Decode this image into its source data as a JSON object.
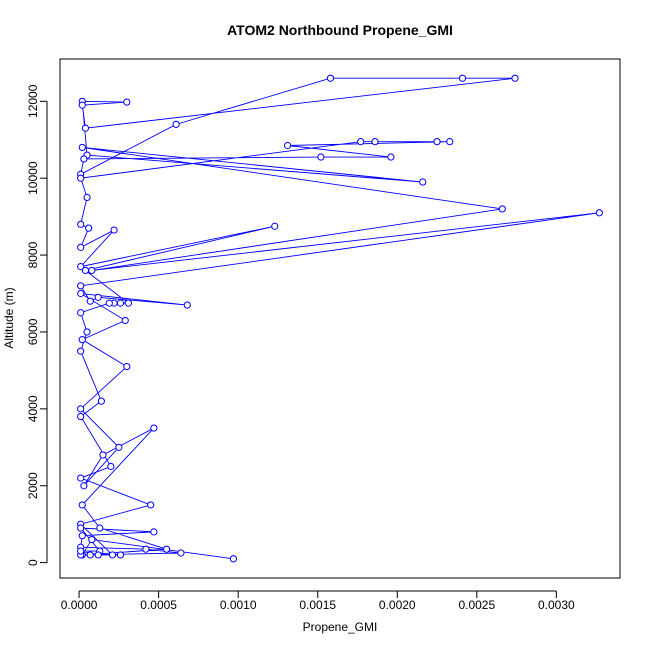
{
  "chart_data": {
    "type": "line",
    "title": "ATOM2 Northbound Propene_GMI",
    "xlabel": "Propene_GMI",
    "ylabel": "Altitude (m)",
    "xlim": [
      -0.00012,
      0.0034
    ],
    "ylim": [
      -400,
      13100
    ],
    "x_ticks": [
      0,
      0.0005,
      0.001,
      0.0015,
      0.002,
      0.0025,
      0.003
    ],
    "x_tick_labels": [
      "0.0000",
      "0.0005",
      "0.0010",
      "0.0015",
      "0.0020",
      "0.0025",
      "0.0030"
    ],
    "y_ticks": [
      0,
      2000,
      4000,
      6000,
      8000,
      10000,
      12000
    ],
    "y_tick_labels": [
      "0",
      "2000",
      "4000",
      "6000",
      "8000",
      "10000",
      "12000"
    ],
    "grid": false,
    "series": [
      {
        "color": "#0000ff",
        "marker": "open-circle",
        "points": [
          [
            0.00097,
            100
          ],
          [
            8e-05,
            600
          ],
          [
            2e-05,
            200
          ],
          [
            0.00055,
            350
          ],
          [
            0.00013,
            900
          ],
          [
            2e-05,
            1500
          ],
          [
            0.00047,
            3500
          ],
          [
            0.00015,
            2800
          ],
          [
            3e-05,
            2000
          ],
          [
            0.00025,
            3000
          ],
          [
            1e-05,
            4000
          ],
          [
            0.0003,
            5100
          ],
          [
            2e-05,
            5800
          ],
          [
            0.00029,
            6300
          ],
          [
            1e-05,
            7000
          ],
          [
            0.00068,
            6700
          ],
          [
            0.00012,
            6900
          ],
          [
            7e-05,
            6800
          ],
          [
            1e-05,
            7200
          ],
          [
            0.00327,
            9100
          ],
          [
            8e-05,
            7600
          ],
          [
            0.00266,
            9200
          ],
          [
            2e-05,
            10800
          ],
          [
            0.00216,
            9900
          ],
          [
            5e-05,
            10600
          ],
          [
            2e-05,
            12000
          ],
          [
            0.0003,
            11980
          ],
          [
            2e-05,
            11900
          ],
          [
            4e-05,
            11300
          ],
          [
            0.00274,
            12600
          ],
          [
            0.00241,
            12600
          ],
          [
            0.00158,
            12600
          ],
          [
            0.00061,
            11400
          ],
          [
            1e-05,
            10100
          ],
          [
            3e-05,
            10500
          ],
          [
            0.00152,
            10550
          ],
          [
            0.00196,
            10550
          ],
          [
            0.00131,
            10850
          ],
          [
            0.00233,
            10950
          ],
          [
            0.00225,
            10950
          ],
          [
            0.00186,
            10950
          ],
          [
            0.00177,
            10950
          ],
          [
            1e-05,
            10000
          ],
          [
            5e-05,
            9500
          ],
          [
            1e-05,
            8800
          ],
          [
            6e-05,
            8700
          ],
          [
            1e-05,
            8200
          ],
          [
            0.00022,
            8650
          ],
          [
            1e-05,
            7700
          ],
          [
            0.00123,
            8750
          ],
          [
            4e-05,
            7600
          ],
          [
            0.00031,
            6750
          ],
          [
            0.00026,
            6750
          ],
          [
            0.00022,
            6750
          ],
          [
            0.00019,
            6750
          ],
          [
            1e-05,
            6500
          ],
          [
            5e-05,
            6000
          ],
          [
            1e-05,
            5500
          ],
          [
            0.00014,
            4200
          ],
          [
            1e-05,
            3800
          ],
          [
            0.0002,
            2500
          ],
          [
            1e-05,
            2200
          ],
          [
            0.00045,
            1500
          ],
          [
            1e-05,
            1000
          ],
          [
            0.00021,
            200
          ],
          [
            0.00026,
            200
          ],
          [
            7e-05,
            200
          ],
          [
            1e-05,
            200
          ],
          [
            0.00064,
            250
          ],
          [
            0.00042,
            350
          ],
          [
            1e-05,
            400
          ],
          [
            2e-05,
            700
          ],
          [
            0.00047,
            800
          ],
          [
            1e-05,
            900
          ],
          [
            0.00013,
            300
          ],
          [
            1e-05,
            300
          ],
          [
            0.00012,
            200
          ]
        ]
      }
    ]
  }
}
